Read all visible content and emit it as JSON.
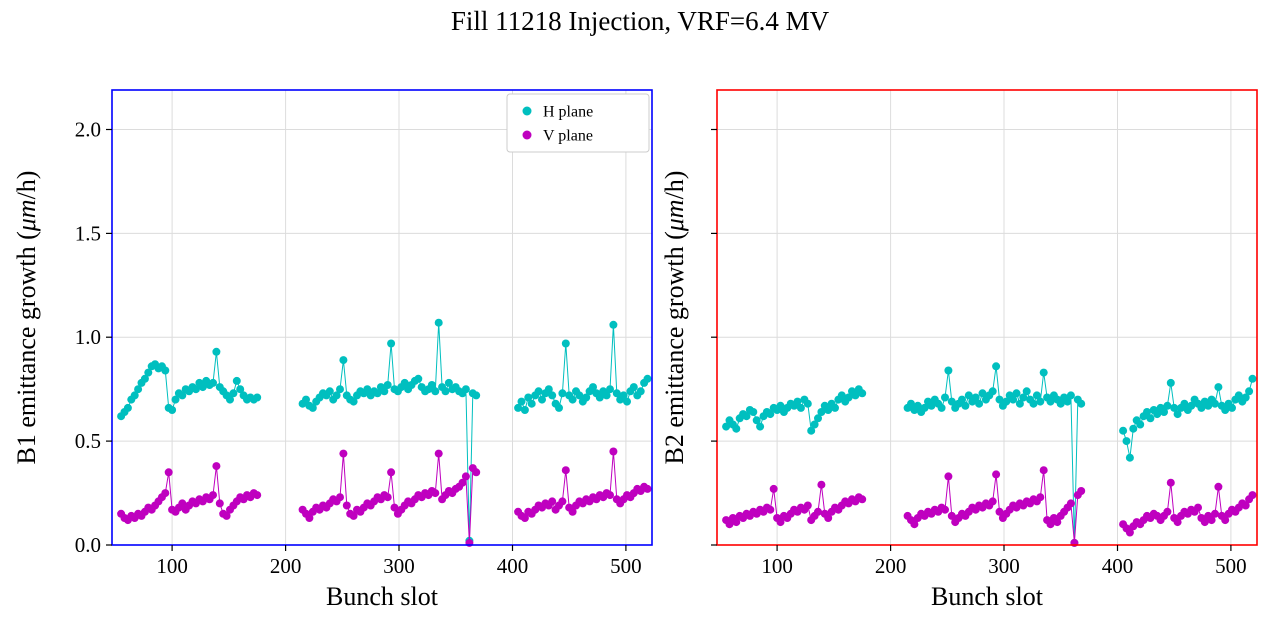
{
  "figure": {
    "title": "Fill 11218 Injection, VRF=6.4 MV"
  },
  "chart_data": [
    {
      "type": "scatter",
      "subplot": "B1",
      "xlabel": "Bunch slot",
      "ylabel": "B1 emittance growth (μm/h)",
      "xlim": [
        47,
        523
      ],
      "ylim": [
        0,
        2.19
      ],
      "xticks": [
        100,
        200,
        300,
        400,
        500
      ],
      "xtick_labels": [
        "100",
        "200",
        "300",
        "400",
        "500"
      ],
      "yticks": [
        0,
        0.5,
        1.0,
        1.5,
        2.0
      ],
      "ytick_labels": [
        "0.0",
        "0.5",
        "1.0",
        "1.5",
        "2.0"
      ],
      "show_ytick_labels": true,
      "grid": true,
      "spine_color": "#0000ff",
      "legend": {
        "visible": true,
        "labels": [
          "H plane",
          "V plane"
        ]
      },
      "x": [
        55,
        58,
        61,
        64,
        67,
        70,
        73,
        76,
        79,
        82,
        85,
        88,
        91,
        94,
        97,
        100,
        103,
        106,
        109,
        112,
        115,
        118,
        121,
        124,
        127,
        130,
        133,
        136,
        139,
        142,
        145,
        148,
        151,
        154,
        157,
        160,
        163,
        166,
        169,
        172,
        175,
        215,
        218,
        221,
        224,
        227,
        230,
        233,
        236,
        239,
        242,
        245,
        248,
        251,
        254,
        257,
        260,
        263,
        266,
        269,
        272,
        275,
        278,
        281,
        284,
        287,
        290,
        293,
        296,
        299,
        302,
        305,
        308,
        311,
        314,
        317,
        320,
        323,
        326,
        329,
        332,
        335,
        338,
        341,
        344,
        347,
        350,
        353,
        356,
        359,
        362,
        365,
        368,
        405,
        408,
        411,
        414,
        417,
        420,
        423,
        426,
        429,
        432,
        435,
        438,
        441,
        444,
        447,
        450,
        453,
        456,
        459,
        462,
        465,
        468,
        471,
        474,
        477,
        480,
        483,
        486,
        489,
        492,
        495,
        498,
        501,
        504,
        507,
        510,
        513,
        516,
        519
      ],
      "series": [
        {
          "name": "H plane",
          "color": "#00bfbf",
          "y": [
            0.62,
            0.64,
            0.66,
            0.7,
            0.72,
            0.75,
            0.78,
            0.8,
            0.83,
            0.86,
            0.87,
            0.85,
            0.86,
            0.84,
            0.66,
            0.65,
            0.7,
            0.73,
            0.72,
            0.75,
            0.74,
            0.76,
            0.75,
            0.78,
            0.76,
            0.79,
            0.77,
            0.78,
            0.93,
            0.76,
            0.74,
            0.72,
            0.7,
            0.73,
            0.79,
            0.75,
            0.72,
            0.7,
            0.71,
            0.7,
            0.71,
            0.68,
            0.7,
            0.67,
            0.66,
            0.69,
            0.71,
            0.73,
            0.72,
            0.74,
            0.7,
            0.72,
            0.75,
            0.89,
            0.72,
            0.7,
            0.69,
            0.72,
            0.74,
            0.73,
            0.75,
            0.72,
            0.74,
            0.73,
            0.76,
            0.74,
            0.77,
            0.97,
            0.75,
            0.74,
            0.76,
            0.78,
            0.75,
            0.77,
            0.79,
            0.8,
            0.76,
            0.74,
            0.75,
            0.77,
            0.74,
            1.07,
            0.76,
            0.74,
            0.78,
            0.75,
            0.76,
            0.74,
            0.73,
            0.75,
            0.02,
            0.73,
            0.72,
            0.66,
            0.69,
            0.65,
            0.71,
            0.68,
            0.72,
            0.74,
            0.7,
            0.73,
            0.75,
            0.72,
            0.68,
            0.66,
            0.73,
            0.97,
            0.72,
            0.7,
            0.74,
            0.72,
            0.69,
            0.71,
            0.74,
            0.76,
            0.73,
            0.71,
            0.74,
            0.72,
            0.75,
            1.06,
            0.73,
            0.7,
            0.72,
            0.69,
            0.74,
            0.76,
            0.72,
            0.74,
            0.78,
            0.8
          ]
        },
        {
          "name": "V plane",
          "color": "#bf00bf",
          "y": [
            0.15,
            0.13,
            0.12,
            0.14,
            0.13,
            0.15,
            0.14,
            0.16,
            0.18,
            0.17,
            0.19,
            0.21,
            0.23,
            0.25,
            0.35,
            0.17,
            0.16,
            0.18,
            0.2,
            0.17,
            0.19,
            0.21,
            0.2,
            0.22,
            0.21,
            0.23,
            0.22,
            0.24,
            0.38,
            0.2,
            0.15,
            0.14,
            0.17,
            0.19,
            0.21,
            0.23,
            0.22,
            0.24,
            0.23,
            0.25,
            0.24,
            0.17,
            0.15,
            0.13,
            0.16,
            0.18,
            0.17,
            0.19,
            0.18,
            0.2,
            0.22,
            0.21,
            0.23,
            0.44,
            0.19,
            0.15,
            0.14,
            0.17,
            0.16,
            0.18,
            0.2,
            0.19,
            0.21,
            0.23,
            0.22,
            0.24,
            0.23,
            0.35,
            0.18,
            0.15,
            0.17,
            0.19,
            0.21,
            0.2,
            0.22,
            0.24,
            0.23,
            0.25,
            0.24,
            0.26,
            0.25,
            0.44,
            0.22,
            0.24,
            0.26,
            0.25,
            0.27,
            0.28,
            0.3,
            0.33,
            0.01,
            0.37,
            0.35,
            0.16,
            0.14,
            0.13,
            0.16,
            0.15,
            0.17,
            0.19,
            0.18,
            0.2,
            0.19,
            0.21,
            0.17,
            0.19,
            0.21,
            0.36,
            0.18,
            0.16,
            0.19,
            0.21,
            0.2,
            0.22,
            0.21,
            0.23,
            0.22,
            0.24,
            0.23,
            0.25,
            0.24,
            0.45,
            0.22,
            0.2,
            0.22,
            0.24,
            0.23,
            0.25,
            0.27,
            0.26,
            0.28,
            0.27
          ]
        }
      ]
    },
    {
      "type": "scatter",
      "subplot": "B2",
      "xlabel": "Bunch slot",
      "ylabel": "B2 emittance growth (μm/h)",
      "xlim": [
        47,
        523
      ],
      "ylim": [
        0,
        2.19
      ],
      "xticks": [
        100,
        200,
        300,
        400,
        500
      ],
      "xtick_labels": [
        "100",
        "200",
        "300",
        "400",
        "500"
      ],
      "yticks": [
        0,
        0.5,
        1.0,
        1.5,
        2.0
      ],
      "ytick_labels": [
        "0.0",
        "0.5",
        "1.0",
        "1.5",
        "2.0"
      ],
      "show_ytick_labels": false,
      "grid": true,
      "spine_color": "#ff0000",
      "legend": {
        "visible": false,
        "labels": []
      },
      "x": [
        55,
        58,
        61,
        64,
        67,
        70,
        73,
        76,
        79,
        82,
        85,
        88,
        91,
        94,
        97,
        100,
        103,
        106,
        109,
        112,
        115,
        118,
        121,
        124,
        127,
        130,
        133,
        136,
        139,
        142,
        145,
        148,
        151,
        154,
        157,
        160,
        163,
        166,
        169,
        172,
        175,
        215,
        218,
        221,
        224,
        227,
        230,
        233,
        236,
        239,
        242,
        245,
        248,
        251,
        254,
        257,
        260,
        263,
        266,
        269,
        272,
        275,
        278,
        281,
        284,
        287,
        290,
        293,
        296,
        299,
        302,
        305,
        308,
        311,
        314,
        317,
        320,
        323,
        326,
        329,
        332,
        335,
        338,
        341,
        344,
        347,
        350,
        353,
        356,
        359,
        362,
        365,
        368,
        405,
        408,
        411,
        414,
        417,
        420,
        423,
        426,
        429,
        432,
        435,
        438,
        441,
        444,
        447,
        450,
        453,
        456,
        459,
        462,
        465,
        468,
        471,
        474,
        477,
        480,
        483,
        486,
        489,
        492,
        495,
        498,
        501,
        504,
        507,
        510,
        513,
        516,
        519
      ],
      "series": [
        {
          "name": "H plane",
          "color": "#00bfbf",
          "y": [
            0.57,
            0.6,
            0.58,
            0.56,
            0.61,
            0.63,
            0.62,
            0.65,
            0.64,
            0.6,
            0.57,
            0.62,
            0.64,
            0.63,
            0.66,
            0.65,
            0.67,
            0.64,
            0.66,
            0.68,
            0.67,
            0.69,
            0.66,
            0.7,
            0.68,
            0.55,
            0.58,
            0.61,
            0.64,
            0.67,
            0.65,
            0.68,
            0.66,
            0.7,
            0.72,
            0.69,
            0.71,
            0.74,
            0.72,
            0.75,
            0.73,
            0.66,
            0.68,
            0.65,
            0.67,
            0.64,
            0.66,
            0.69,
            0.67,
            0.7,
            0.68,
            0.66,
            0.71,
            0.84,
            0.69,
            0.66,
            0.68,
            0.7,
            0.67,
            0.72,
            0.69,
            0.71,
            0.68,
            0.73,
            0.7,
            0.72,
            0.74,
            0.86,
            0.7,
            0.67,
            0.69,
            0.72,
            0.7,
            0.73,
            0.68,
            0.71,
            0.74,
            0.7,
            0.68,
            0.72,
            0.69,
            0.83,
            0.71,
            0.69,
            0.72,
            0.7,
            0.68,
            0.71,
            0.69,
            0.72,
            0.01,
            0.7,
            0.68,
            0.55,
            0.5,
            0.42,
            0.56,
            0.6,
            0.58,
            0.62,
            0.64,
            0.61,
            0.65,
            0.63,
            0.66,
            0.64,
            0.67,
            0.78,
            0.66,
            0.63,
            0.66,
            0.68,
            0.65,
            0.67,
            0.7,
            0.68,
            0.66,
            0.69,
            0.67,
            0.7,
            0.68,
            0.76,
            0.67,
            0.65,
            0.68,
            0.66,
            0.7,
            0.72,
            0.69,
            0.71,
            0.74,
            0.8
          ]
        },
        {
          "name": "V plane",
          "color": "#bf00bf",
          "y": [
            0.12,
            0.1,
            0.13,
            0.11,
            0.14,
            0.13,
            0.15,
            0.14,
            0.16,
            0.15,
            0.17,
            0.16,
            0.18,
            0.17,
            0.27,
            0.13,
            0.11,
            0.14,
            0.13,
            0.15,
            0.17,
            0.16,
            0.18,
            0.17,
            0.19,
            0.12,
            0.14,
            0.16,
            0.29,
            0.15,
            0.13,
            0.16,
            0.18,
            0.17,
            0.19,
            0.21,
            0.2,
            0.22,
            0.21,
            0.23,
            0.22,
            0.14,
            0.12,
            0.1,
            0.13,
            0.15,
            0.14,
            0.16,
            0.15,
            0.17,
            0.16,
            0.18,
            0.17,
            0.33,
            0.14,
            0.11,
            0.13,
            0.15,
            0.14,
            0.16,
            0.18,
            0.17,
            0.19,
            0.18,
            0.2,
            0.19,
            0.21,
            0.34,
            0.16,
            0.13,
            0.15,
            0.17,
            0.19,
            0.18,
            0.2,
            0.19,
            0.21,
            0.2,
            0.22,
            0.21,
            0.23,
            0.36,
            0.12,
            0.1,
            0.13,
            0.11,
            0.14,
            0.16,
            0.18,
            0.2,
            0.01,
            0.24,
            0.26,
            0.1,
            0.08,
            0.06,
            0.09,
            0.11,
            0.1,
            0.12,
            0.14,
            0.13,
            0.15,
            0.14,
            0.12,
            0.14,
            0.16,
            0.3,
            0.13,
            0.11,
            0.14,
            0.16,
            0.15,
            0.17,
            0.16,
            0.18,
            0.13,
            0.11,
            0.14,
            0.12,
            0.15,
            0.28,
            0.14,
            0.12,
            0.15,
            0.17,
            0.16,
            0.18,
            0.2,
            0.19,
            0.22,
            0.24
          ]
        }
      ]
    }
  ]
}
